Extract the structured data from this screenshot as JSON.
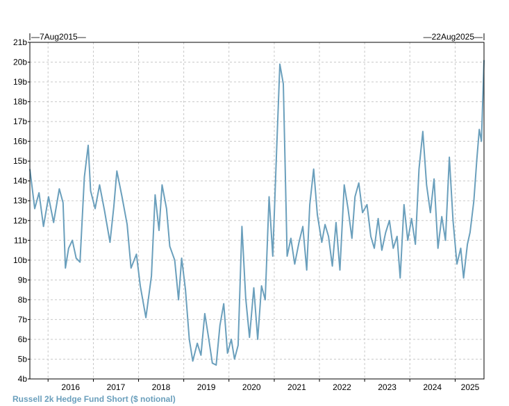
{
  "chart_data": {
    "type": "line",
    "title": "",
    "xlabel": "",
    "ylabel": "",
    "date_range": {
      "start": "7Aug2015",
      "end": "22Aug2025"
    },
    "x_ticks": [
      "2016",
      "2017",
      "2018",
      "2019",
      "2020",
      "2021",
      "2022",
      "2023",
      "2024",
      "2025"
    ],
    "y_ticks": [
      "4b",
      "5b",
      "6b",
      "7b",
      "8b",
      "9b",
      "10b",
      "11b",
      "12b",
      "13b",
      "14b",
      "15b",
      "16b",
      "17b",
      "18b",
      "19b",
      "20b",
      "21b"
    ],
    "ylim": [
      4,
      21
    ],
    "xlim": [
      "2015-08-07",
      "2025-08-22"
    ],
    "grid": true,
    "legend": "bottom-left",
    "series": [
      {
        "name": "Russell 2k Hedge Fund Short ($ notional)",
        "color": "#6a9fbc",
        "points": [
          [
            "2015-08-07",
            14.6
          ],
          [
            "2015-09-15",
            12.6
          ],
          [
            "2015-10-20",
            13.4
          ],
          [
            "2015-11-25",
            11.7
          ],
          [
            "2016-01-05",
            13.2
          ],
          [
            "2016-02-15",
            11.9
          ],
          [
            "2016-04-01",
            13.6
          ],
          [
            "2016-05-01",
            12.9
          ],
          [
            "2016-05-20",
            9.6
          ],
          [
            "2016-06-15",
            10.6
          ],
          [
            "2016-07-15",
            11.0
          ],
          [
            "2016-08-15",
            10.1
          ],
          [
            "2016-09-15",
            9.9
          ],
          [
            "2016-10-20",
            14.2
          ],
          [
            "2016-11-20",
            15.8
          ],
          [
            "2016-12-10",
            13.5
          ],
          [
            "2017-01-15",
            12.6
          ],
          [
            "2017-02-20",
            13.8
          ],
          [
            "2017-04-01",
            12.5
          ],
          [
            "2017-05-15",
            10.9
          ],
          [
            "2017-06-15",
            12.7
          ],
          [
            "2017-07-10",
            14.5
          ],
          [
            "2017-08-20",
            13.2
          ],
          [
            "2017-10-01",
            11.8
          ],
          [
            "2017-11-01",
            9.6
          ],
          [
            "2017-12-15",
            10.3
          ],
          [
            "2018-01-15",
            8.7
          ],
          [
            "2018-03-01",
            7.1
          ],
          [
            "2018-04-15",
            9.2
          ],
          [
            "2018-05-15",
            13.3
          ],
          [
            "2018-06-15",
            11.5
          ],
          [
            "2018-07-10",
            13.8
          ],
          [
            "2018-08-15",
            12.6
          ],
          [
            "2018-09-10",
            10.7
          ],
          [
            "2018-10-20",
            10.0
          ],
          [
            "2018-11-20",
            8.0
          ],
          [
            "2018-12-15",
            10.1
          ],
          [
            "2019-01-15",
            8.5
          ],
          [
            "2019-02-15",
            6.0
          ],
          [
            "2019-03-15",
            4.9
          ],
          [
            "2019-04-20",
            5.8
          ],
          [
            "2019-05-20",
            5.2
          ],
          [
            "2019-06-20",
            7.3
          ],
          [
            "2019-07-20",
            6.1
          ],
          [
            "2019-08-20",
            4.8
          ],
          [
            "2019-09-20",
            4.7
          ],
          [
            "2019-10-20",
            6.7
          ],
          [
            "2019-11-20",
            7.8
          ],
          [
            "2019-12-20",
            5.3
          ],
          [
            "2020-01-20",
            6.0
          ],
          [
            "2020-02-15",
            5.0
          ],
          [
            "2020-03-15",
            5.7
          ],
          [
            "2020-04-15",
            11.7
          ],
          [
            "2020-05-15",
            8.1
          ],
          [
            "2020-06-15",
            6.1
          ],
          [
            "2020-07-20",
            8.6
          ],
          [
            "2020-08-20",
            6.0
          ],
          [
            "2020-09-20",
            8.7
          ],
          [
            "2020-10-20",
            8.0
          ],
          [
            "2020-11-20",
            13.2
          ],
          [
            "2020-12-20",
            10.2
          ],
          [
            "2021-01-20",
            15.5
          ],
          [
            "2021-02-15",
            19.9
          ],
          [
            "2021-03-15",
            18.9
          ],
          [
            "2021-04-15",
            10.2
          ],
          [
            "2021-05-15",
            11.1
          ],
          [
            "2021-06-15",
            9.8
          ],
          [
            "2021-07-20",
            10.9
          ],
          [
            "2021-08-20",
            11.7
          ],
          [
            "2021-09-20",
            9.5
          ],
          [
            "2021-10-15",
            12.8
          ],
          [
            "2021-11-15",
            14.6
          ],
          [
            "2021-12-15",
            12.3
          ],
          [
            "2022-01-20",
            10.9
          ],
          [
            "2022-02-15",
            11.8
          ],
          [
            "2022-03-15",
            11.2
          ],
          [
            "2022-04-15",
            9.7
          ],
          [
            "2022-05-15",
            11.9
          ],
          [
            "2022-06-15",
            9.5
          ],
          [
            "2022-07-20",
            13.8
          ],
          [
            "2022-08-20",
            12.6
          ],
          [
            "2022-09-20",
            11.1
          ],
          [
            "2022-10-15",
            13.2
          ],
          [
            "2022-11-15",
            13.9
          ],
          [
            "2022-12-15",
            12.4
          ],
          [
            "2023-01-20",
            12.8
          ],
          [
            "2023-02-20",
            11.2
          ],
          [
            "2023-03-20",
            10.6
          ],
          [
            "2023-04-20",
            12.1
          ],
          [
            "2023-05-20",
            10.5
          ],
          [
            "2023-06-20",
            11.4
          ],
          [
            "2023-07-20",
            12.0
          ],
          [
            "2023-08-20",
            10.6
          ],
          [
            "2023-09-20",
            11.2
          ],
          [
            "2023-10-15",
            9.1
          ],
          [
            "2023-11-15",
            12.8
          ],
          [
            "2023-12-15",
            11.0
          ],
          [
            "2024-01-15",
            12.1
          ],
          [
            "2024-02-15",
            10.8
          ],
          [
            "2024-03-15",
            14.6
          ],
          [
            "2024-04-15",
            16.5
          ],
          [
            "2024-05-15",
            13.8
          ],
          [
            "2024-06-15",
            12.4
          ],
          [
            "2024-07-15",
            14.1
          ],
          [
            "2024-08-15",
            10.6
          ],
          [
            "2024-09-15",
            12.2
          ],
          [
            "2024-10-15",
            11.0
          ],
          [
            "2024-11-15",
            15.2
          ],
          [
            "2024-12-15",
            12.0
          ],
          [
            "2025-01-15",
            9.8
          ],
          [
            "2025-02-15",
            10.6
          ],
          [
            "2025-03-10",
            9.1
          ],
          [
            "2025-04-10",
            10.8
          ],
          [
            "2025-05-01",
            11.4
          ],
          [
            "2025-06-01",
            13.0
          ],
          [
            "2025-06-25",
            15.1
          ],
          [
            "2025-07-15",
            16.6
          ],
          [
            "2025-08-01",
            16.0
          ],
          [
            "2025-08-22",
            20.1
          ]
        ]
      }
    ]
  }
}
